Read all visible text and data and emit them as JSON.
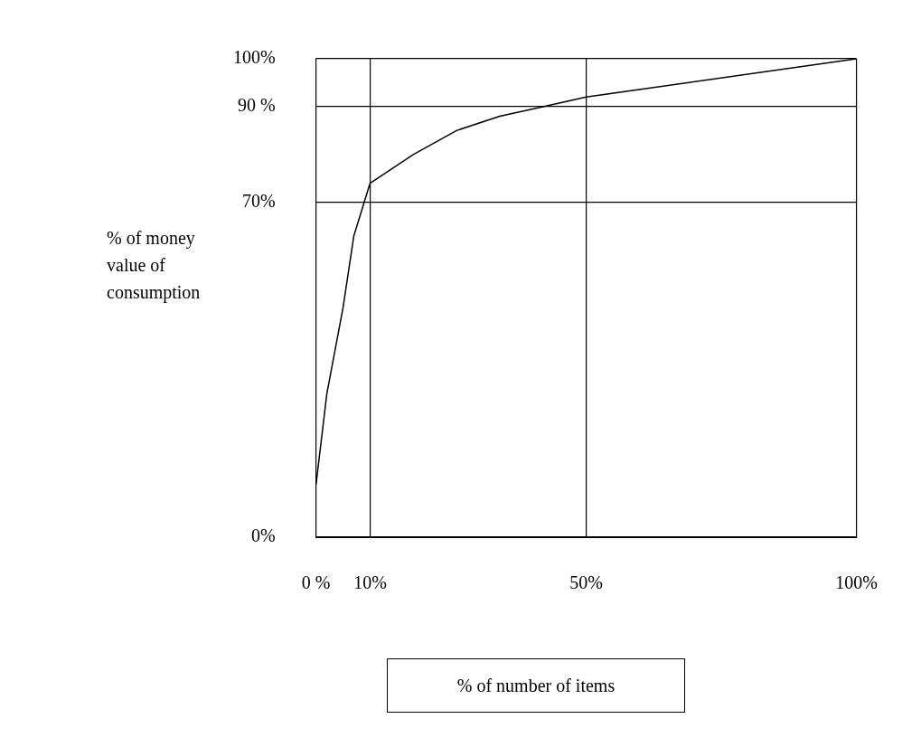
{
  "chart_data": {
    "type": "line",
    "xlabel": "% of number of items",
    "ylabel": "% of money value of consumption",
    "x": [
      0,
      2,
      5,
      7,
      10,
      18,
      26,
      34,
      42,
      50,
      100
    ],
    "series": [
      {
        "color": "#000000",
        "values": [
          11,
          30,
          48,
          63,
          74,
          80,
          85,
          88,
          90,
          92,
          100
        ]
      }
    ],
    "xlim": [
      0,
      100
    ],
    "ylim": [
      0,
      100
    ],
    "xticks": [
      {
        "value": 0,
        "label": "0 %"
      },
      {
        "value": 10,
        "label": "10%"
      },
      {
        "value": 50,
        "label": "50%"
      },
      {
        "value": 100,
        "label": "100%"
      }
    ],
    "yticks": [
      {
        "value": 0,
        "label": "0%"
      },
      {
        "value": 70,
        "label": "70%"
      },
      {
        "value": 90,
        "label": "90 %"
      },
      {
        "value": 100,
        "label": "100%"
      }
    ],
    "grid": true,
    "marker": "none",
    "line_style": "solid"
  }
}
